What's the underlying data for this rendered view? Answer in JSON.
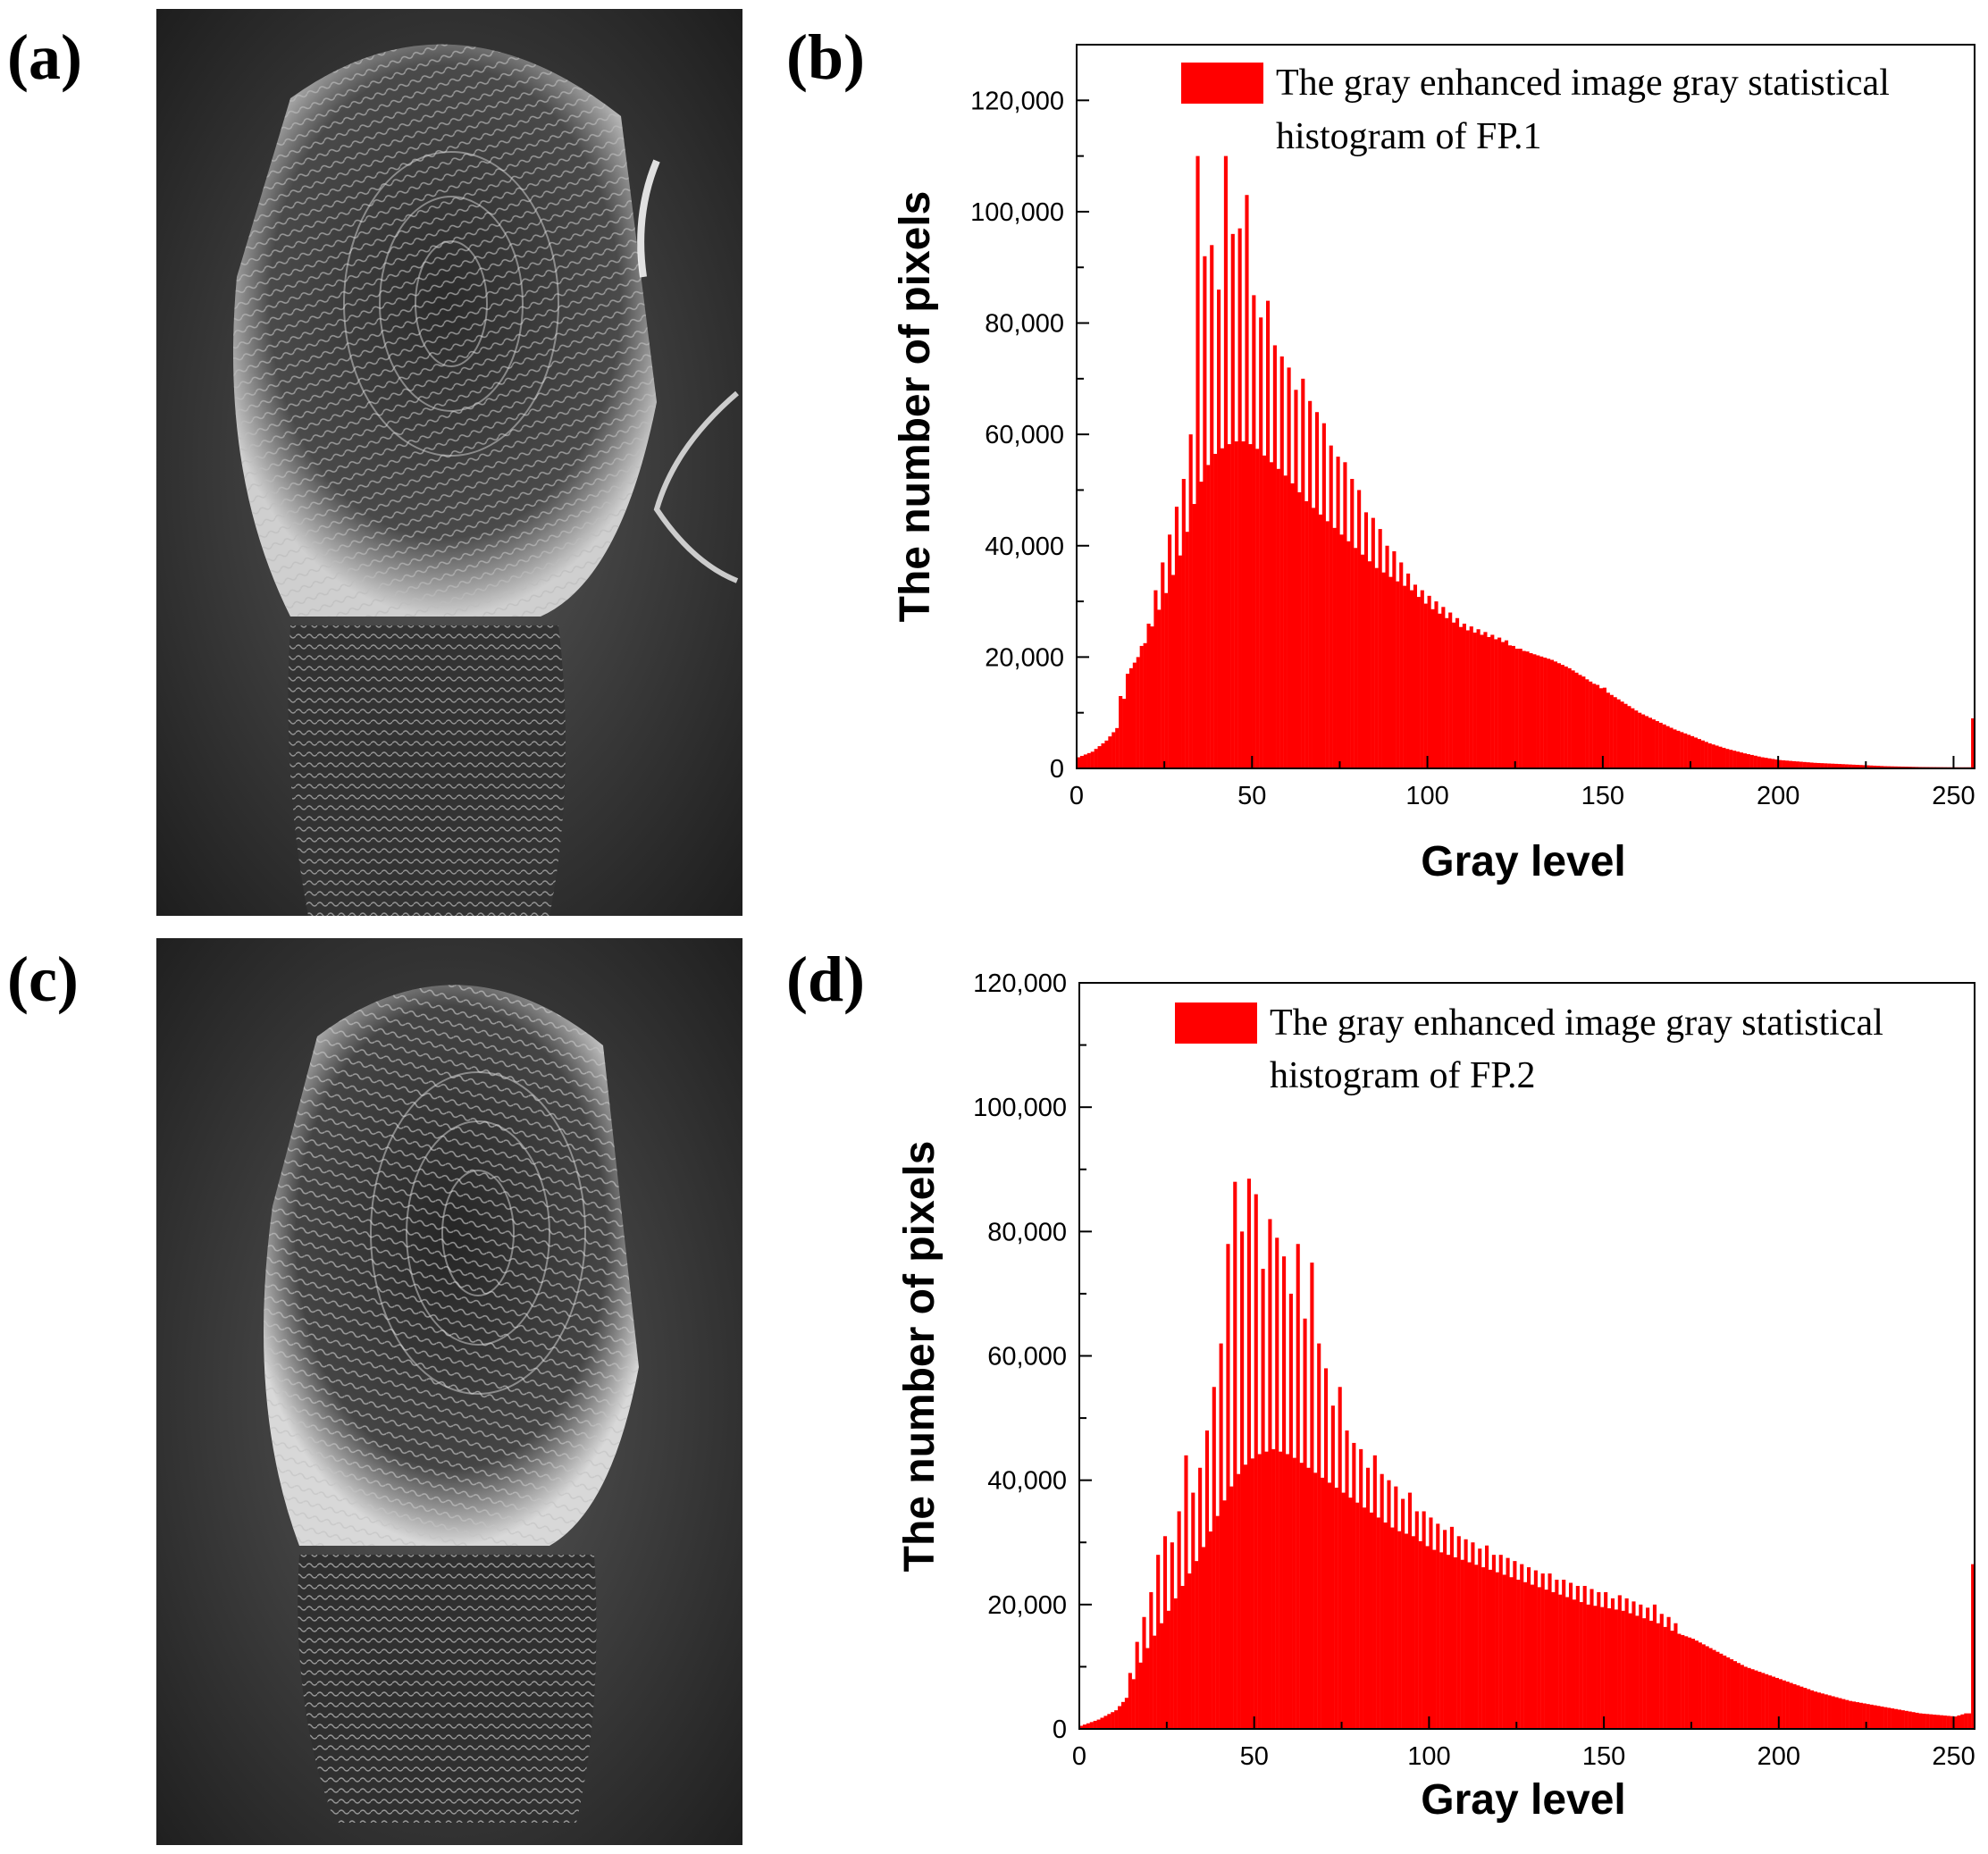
{
  "labels": {
    "a": "(a)",
    "b": "(b)",
    "c": "(c)",
    "d": "(d)"
  },
  "photos": {
    "a": "fingerprint-image-fp1",
    "c": "fingerprint-image-fp2"
  },
  "colors": {
    "bar": "#ff0000",
    "axis": "#000000"
  },
  "chart_data": [
    {
      "panel": "b",
      "type": "bar",
      "title": "",
      "xlabel": "Gray level",
      "ylabel": "The number of pixels",
      "xlim": [
        0,
        256
      ],
      "ylim": [
        0,
        130000
      ],
      "xticks": [
        0,
        50,
        100,
        150,
        200,
        250
      ],
      "xtick_labels": [
        "0",
        "50",
        "100",
        "150",
        "200",
        "250"
      ],
      "yticks": [
        0,
        20000,
        40000,
        60000,
        80000,
        100000,
        120000
      ],
      "ytick_labels": [
        "0",
        "20,000",
        "40,000",
        "60,000",
        "80,000",
        "100,000",
        "120,000"
      ],
      "legend": {
        "line1": "The gray enhanced image gray statistical",
        "line2": "histogram of FP.1",
        "position": "top-right"
      },
      "profile": [
        [
          0,
          2000
        ],
        [
          4,
          3000
        ],
        [
          8,
          5000
        ],
        [
          12,
          8000
        ],
        [
          14,
          17000
        ],
        [
          18,
          21000
        ],
        [
          22,
          27000
        ],
        [
          26,
          33000
        ],
        [
          30,
          40000
        ],
        [
          34,
          50000
        ],
        [
          38,
          56000
        ],
        [
          42,
          58000
        ],
        [
          46,
          59000
        ],
        [
          50,
          58000
        ],
        [
          55,
          55000
        ],
        [
          60,
          52000
        ],
        [
          65,
          48000
        ],
        [
          70,
          45000
        ],
        [
          75,
          42000
        ],
        [
          80,
          39000
        ],
        [
          85,
          36000
        ],
        [
          90,
          34000
        ],
        [
          95,
          32000
        ],
        [
          100,
          29000
        ],
        [
          105,
          27000
        ],
        [
          110,
          25000
        ],
        [
          115,
          24000
        ],
        [
          120,
          23000
        ],
        [
          125,
          21500
        ],
        [
          130,
          20500
        ],
        [
          135,
          19500
        ],
        [
          140,
          18000
        ],
        [
          145,
          16000
        ],
        [
          150,
          14000
        ],
        [
          155,
          12000
        ],
        [
          160,
          10000
        ],
        [
          165,
          8500
        ],
        [
          170,
          7000
        ],
        [
          175,
          5800
        ],
        [
          180,
          4500
        ],
        [
          185,
          3500
        ],
        [
          190,
          2700
        ],
        [
          195,
          2000
        ],
        [
          200,
          1500
        ],
        [
          210,
          1000
        ],
        [
          220,
          700
        ],
        [
          230,
          400
        ],
        [
          240,
          250
        ],
        [
          250,
          200
        ],
        [
          253,
          200
        ]
      ],
      "spikes": [
        [
          12,
          13000
        ],
        [
          14,
          17000
        ],
        [
          16,
          19000
        ],
        [
          18,
          22000
        ],
        [
          20,
          26000
        ],
        [
          22,
          32000
        ],
        [
          24,
          37000
        ],
        [
          26,
          42000
        ],
        [
          28,
          47000
        ],
        [
          30,
          52000
        ],
        [
          32,
          60000
        ],
        [
          34,
          110000
        ],
        [
          36,
          92000
        ],
        [
          38,
          94000
        ],
        [
          40,
          86000
        ],
        [
          42,
          110000
        ],
        [
          44,
          96000
        ],
        [
          46,
          97000
        ],
        [
          48,
          103000
        ],
        [
          50,
          85000
        ],
        [
          52,
          81000
        ],
        [
          54,
          84000
        ],
        [
          56,
          76000
        ],
        [
          58,
          74000
        ],
        [
          60,
          72000
        ],
        [
          62,
          68000
        ],
        [
          64,
          70000
        ],
        [
          66,
          66000
        ],
        [
          68,
          64000
        ],
        [
          70,
          62000
        ],
        [
          72,
          58000
        ],
        [
          74,
          56000
        ],
        [
          76,
          55000
        ],
        [
          78,
          52000
        ],
        [
          80,
          50000
        ],
        [
          82,
          46000
        ],
        [
          84,
          45000
        ],
        [
          86,
          43000
        ],
        [
          88,
          40000
        ],
        [
          90,
          39000
        ],
        [
          92,
          37000
        ],
        [
          94,
          35000
        ],
        [
          96,
          33000
        ],
        [
          98,
          32000
        ],
        [
          100,
          31000
        ],
        [
          102,
          30000
        ],
        [
          104,
          29000
        ],
        [
          106,
          28000
        ],
        [
          108,
          27000
        ],
        [
          110,
          26000
        ],
        [
          112,
          25500
        ],
        [
          114,
          25000
        ],
        [
          116,
          24500
        ],
        [
          118,
          24000
        ],
        [
          120,
          23500
        ],
        [
          122,
          23000
        ],
        [
          124,
          22000
        ],
        [
          126,
          21500
        ],
        [
          128,
          21000
        ],
        [
          130,
          20500
        ],
        [
          132,
          20000
        ],
        [
          134,
          19500
        ],
        [
          136,
          19000
        ],
        [
          138,
          18500
        ],
        [
          140,
          17500
        ],
        [
          142,
          17000
        ],
        [
          144,
          16500
        ],
        [
          146,
          15500
        ],
        [
          148,
          15000
        ],
        [
          150,
          14500
        ],
        [
          255,
          9000
        ]
      ]
    },
    {
      "panel": "d",
      "type": "bar",
      "title": "",
      "xlabel": "Gray level",
      "ylabel": "The number of pixels",
      "xlim": [
        0,
        256
      ],
      "ylim": [
        0,
        120000
      ],
      "xticks": [
        0,
        50,
        100,
        150,
        200,
        250
      ],
      "xtick_labels": [
        "0",
        "50",
        "100",
        "150",
        "200",
        "250"
      ],
      "yticks": [
        0,
        20000,
        40000,
        60000,
        80000,
        100000,
        120000
      ],
      "ytick_labels": [
        "0",
        "20,000",
        "40,000",
        "60,000",
        "80,000",
        "100,000",
        "120,000"
      ],
      "legend": {
        "line1": "The gray enhanced image gray statistical",
        "line2": "histogram of FP.2",
        "position": "top-right"
      },
      "profile": [
        [
          0,
          500
        ],
        [
          5,
          1500
        ],
        [
          10,
          3000
        ],
        [
          13,
          5000
        ],
        [
          15,
          8000
        ],
        [
          18,
          12000
        ],
        [
          22,
          16000
        ],
        [
          26,
          20000
        ],
        [
          30,
          24000
        ],
        [
          34,
          28000
        ],
        [
          38,
          33000
        ],
        [
          42,
          38000
        ],
        [
          46,
          42000
        ],
        [
          50,
          44000
        ],
        [
          55,
          45000
        ],
        [
          60,
          44000
        ],
        [
          65,
          42000
        ],
        [
          70,
          40000
        ],
        [
          75,
          38000
        ],
        [
          80,
          36000
        ],
        [
          85,
          34000
        ],
        [
          90,
          32000
        ],
        [
          95,
          31000
        ],
        [
          100,
          29000
        ],
        [
          105,
          28000
        ],
        [
          110,
          27000
        ],
        [
          115,
          26000
        ],
        [
          120,
          25000
        ],
        [
          125,
          24000
        ],
        [
          130,
          23000
        ],
        [
          135,
          22000
        ],
        [
          140,
          21000
        ],
        [
          145,
          20000
        ],
        [
          150,
          19500
        ],
        [
          155,
          19000
        ],
        [
          160,
          18000
        ],
        [
          165,
          17000
        ],
        [
          170,
          15500
        ],
        [
          175,
          14500
        ],
        [
          180,
          13000
        ],
        [
          185,
          11500
        ],
        [
          190,
          10000
        ],
        [
          195,
          9000
        ],
        [
          200,
          8000
        ],
        [
          210,
          6000
        ],
        [
          220,
          4500
        ],
        [
          230,
          3500
        ],
        [
          240,
          2500
        ],
        [
          250,
          2000
        ],
        [
          253,
          2500
        ]
      ],
      "spikes": [
        [
          14,
          9000
        ],
        [
          16,
          14000
        ],
        [
          18,
          18000
        ],
        [
          20,
          22000
        ],
        [
          22,
          28000
        ],
        [
          24,
          31000
        ],
        [
          26,
          30000
        ],
        [
          28,
          35000
        ],
        [
          30,
          44000
        ],
        [
          32,
          38000
        ],
        [
          34,
          42000
        ],
        [
          36,
          48000
        ],
        [
          38,
          55000
        ],
        [
          40,
          62000
        ],
        [
          42,
          78000
        ],
        [
          44,
          88000
        ],
        [
          46,
          80000
        ],
        [
          48,
          88500
        ],
        [
          50,
          86000
        ],
        [
          52,
          74000
        ],
        [
          54,
          82000
        ],
        [
          56,
          79000
        ],
        [
          58,
          76000
        ],
        [
          60,
          70000
        ],
        [
          62,
          78000
        ],
        [
          64,
          66000
        ],
        [
          66,
          75000
        ],
        [
          68,
          62000
        ],
        [
          70,
          58000
        ],
        [
          72,
          52000
        ],
        [
          74,
          55000
        ],
        [
          76,
          48000
        ],
        [
          78,
          46000
        ],
        [
          80,
          45000
        ],
        [
          82,
          42000
        ],
        [
          84,
          44000
        ],
        [
          86,
          41000
        ],
        [
          88,
          40000
        ],
        [
          90,
          39000
        ],
        [
          92,
          37000
        ],
        [
          94,
          38000
        ],
        [
          96,
          35000
        ],
        [
          98,
          35000
        ],
        [
          100,
          34000
        ],
        [
          102,
          33000
        ],
        [
          104,
          32000
        ],
        [
          106,
          32500
        ],
        [
          108,
          31000
        ],
        [
          110,
          30500
        ],
        [
          112,
          30000
        ],
        [
          114,
          29000
        ],
        [
          116,
          29500
        ],
        [
          118,
          28000
        ],
        [
          120,
          28000
        ],
        [
          122,
          27500
        ],
        [
          124,
          27000
        ],
        [
          126,
          26500
        ],
        [
          128,
          26000
        ],
        [
          130,
          25500
        ],
        [
          132,
          25000
        ],
        [
          134,
          25000
        ],
        [
          136,
          24000
        ],
        [
          138,
          24000
        ],
        [
          140,
          23500
        ],
        [
          142,
          23000
        ],
        [
          144,
          23000
        ],
        [
          146,
          22500
        ],
        [
          148,
          22000
        ],
        [
          150,
          22000
        ],
        [
          152,
          21000
        ],
        [
          154,
          21500
        ],
        [
          156,
          21000
        ],
        [
          158,
          20500
        ],
        [
          160,
          20000
        ],
        [
          162,
          19500
        ],
        [
          164,
          20000
        ],
        [
          166,
          18500
        ],
        [
          168,
          18000
        ],
        [
          170,
          17000
        ],
        [
          255,
          26500
        ]
      ]
    }
  ]
}
